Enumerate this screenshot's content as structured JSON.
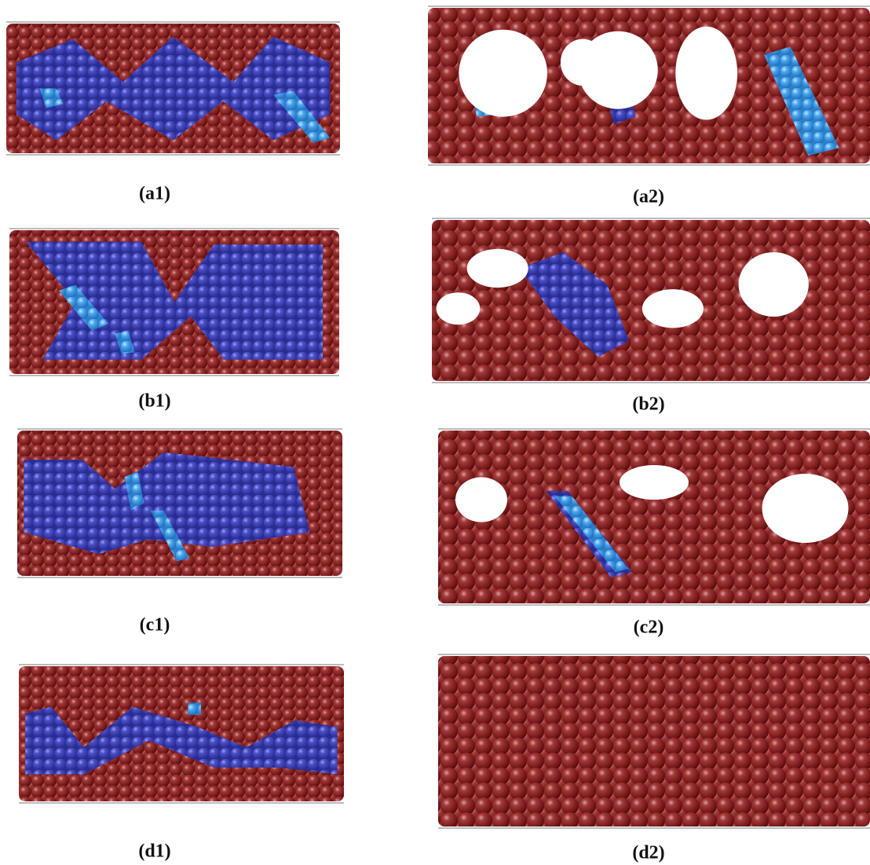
{
  "panels": [
    {
      "label": "(a1)"
    },
    {
      "label": "(a2)"
    },
    {
      "label": "(b1)"
    },
    {
      "label": "(b2)"
    },
    {
      "label": "(c1)"
    },
    {
      "label": "(c2)"
    },
    {
      "label": "(d1)"
    },
    {
      "label": "(d2)"
    }
  ]
}
